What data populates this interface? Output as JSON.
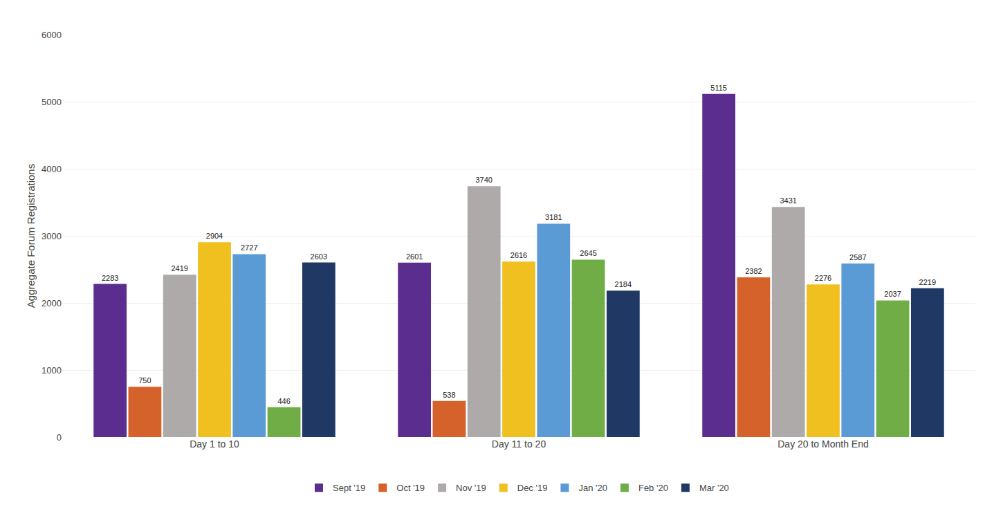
{
  "chart_data": {
    "type": "bar",
    "ylabel": "Aggregate Forum Registrations",
    "categories": [
      "Day 1 to 10",
      "Day 11 to 20",
      "Day 20 to Month End"
    ],
    "series": [
      {
        "name": "Sept '19",
        "color": "#5B2D8E",
        "values": [
          2283,
          2601,
          5115
        ]
      },
      {
        "name": "Oct '19",
        "color": "#D4622A",
        "values": [
          750,
          538,
          2382
        ]
      },
      {
        "name": "Nov '19",
        "color": "#AEAAAA",
        "values": [
          2419,
          3740,
          3431
        ]
      },
      {
        "name": "Dec '19",
        "color": "#F0C020",
        "values": [
          2904,
          2616,
          2276
        ]
      },
      {
        "name": "Jan '20",
        "color": "#5B9BD5",
        "values": [
          2727,
          3181,
          2587
        ]
      },
      {
        "name": "Feb '20",
        "color": "#70AD47",
        "values": [
          446,
          2645,
          2037
        ]
      },
      {
        "name": "Mar '20",
        "color": "#1F3864",
        "values": [
          2603,
          2184,
          2219
        ]
      }
    ],
    "ylim": [
      0,
      6000
    ],
    "yticks": [
      0,
      1000,
      2000,
      3000,
      4000,
      5000,
      6000
    ],
    "grid": true,
    "legend": "bottom",
    "data_labels": true
  }
}
